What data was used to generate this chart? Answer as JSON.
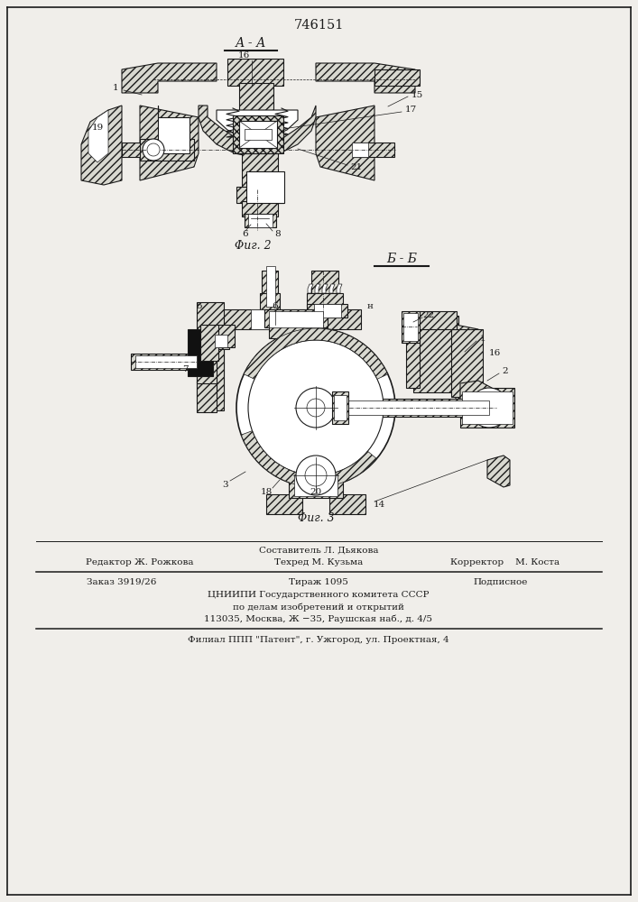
{
  "patent_number": "746151",
  "section_label_1": "А - А",
  "section_label_2": "Б - Б",
  "fig_label_2": "Φиг. 2",
  "fig_label_3": "Φиг. 3",
  "footer_line1": "Составитель Л. Дьякова",
  "footer_line2_left": "Редактор Ж. Рожкова",
  "footer_line2_mid": "Техред М. Кузьма",
  "footer_line2_right": "Корректор    М. Коста",
  "footer_line3_left": "Заказ 3919/26",
  "footer_line3_mid": "Тираж 1095",
  "footer_line3_right": "Подписное",
  "footer_line4": "ЦНИИПИ Государственного комитета СССР",
  "footer_line5": "по делам изобретений и открытий",
  "footer_line6": "113035, Москва, Ж −35, Раушская наб., д. 4/5",
  "footer_line7": "Филиал ППП \"Патент\", г. Ужгород, ул. Проектная, 4",
  "bg_color": "#f0eeea",
  "line_color": "#1a1a1a",
  "hatch_color": "#1a1a1a"
}
